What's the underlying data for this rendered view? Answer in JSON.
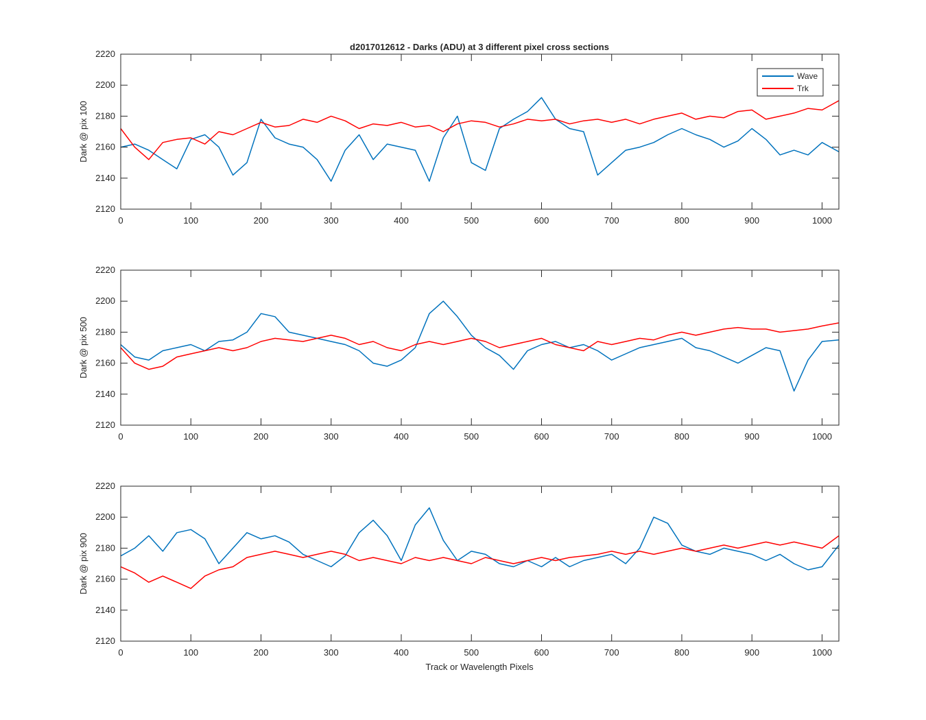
{
  "figure": {
    "title": "d2017012612 - Darks (ADU) at 3 different pixel cross sections",
    "xlabel": "Track or Wavelength Pixels"
  },
  "legend": {
    "placement": "top-right",
    "entries": [
      {
        "name": "Wave",
        "color": "#0072bd"
      },
      {
        "name": "Trk",
        "color": "#ff0000"
      }
    ]
  },
  "chart_data": [
    {
      "type": "line",
      "ylabel": "Dark @ pix 100",
      "xlim": [
        0,
        1024
      ],
      "ylim": [
        2120,
        2220
      ],
      "xticks": [
        0,
        100,
        200,
        300,
        400,
        500,
        600,
        700,
        800,
        900,
        1000
      ],
      "yticks": [
        2120,
        2140,
        2160,
        2180,
        2200,
        2220
      ],
      "grid": false,
      "series": [
        {
          "name": "Wave",
          "color": "#0072bd",
          "x": [
            0,
            20,
            40,
            60,
            80,
            100,
            120,
            140,
            160,
            180,
            200,
            220,
            240,
            260,
            280,
            300,
            320,
            340,
            360,
            380,
            400,
            420,
            440,
            460,
            480,
            500,
            520,
            540,
            560,
            580,
            600,
            620,
            640,
            660,
            680,
            700,
            720,
            740,
            760,
            780,
            800,
            820,
            840,
            860,
            880,
            900,
            920,
            940,
            960,
            980,
            1000,
            1024
          ],
          "y": [
            2160,
            2162,
            2158,
            2152,
            2146,
            2165,
            2168,
            2160,
            2142,
            2150,
            2178,
            2166,
            2162,
            2160,
            2152,
            2138,
            2158,
            2168,
            2152,
            2162,
            2160,
            2158,
            2138,
            2166,
            2180,
            2150,
            2145,
            2172,
            2178,
            2183,
            2192,
            2178,
            2172,
            2170,
            2142,
            2150,
            2158,
            2160,
            2163,
            2168,
            2172,
            2168,
            2165,
            2160,
            2164,
            2172,
            2165,
            2155,
            2158,
            2155,
            2163,
            2157
          ]
        },
        {
          "name": "Trk",
          "color": "#ff0000",
          "x": [
            0,
            20,
            40,
            60,
            80,
            100,
            120,
            140,
            160,
            180,
            200,
            220,
            240,
            260,
            280,
            300,
            320,
            340,
            360,
            380,
            400,
            420,
            440,
            460,
            480,
            500,
            520,
            540,
            560,
            580,
            600,
            620,
            640,
            660,
            680,
            700,
            720,
            740,
            760,
            780,
            800,
            820,
            840,
            860,
            880,
            900,
            920,
            940,
            960,
            980,
            1000,
            1024
          ],
          "y": [
            2172,
            2160,
            2152,
            2163,
            2165,
            2166,
            2162,
            2170,
            2168,
            2172,
            2176,
            2173,
            2174,
            2178,
            2176,
            2180,
            2177,
            2172,
            2175,
            2174,
            2176,
            2173,
            2174,
            2170,
            2175,
            2177,
            2176,
            2173,
            2175,
            2178,
            2177,
            2178,
            2175,
            2177,
            2178,
            2176,
            2178,
            2175,
            2178,
            2180,
            2182,
            2178,
            2180,
            2179,
            2183,
            2184,
            2178,
            2180,
            2182,
            2185,
            2184,
            2190
          ]
        }
      ]
    },
    {
      "type": "line",
      "ylabel": "Dark @ pix 500",
      "xlim": [
        0,
        1024
      ],
      "ylim": [
        2120,
        2220
      ],
      "xticks": [
        0,
        100,
        200,
        300,
        400,
        500,
        600,
        700,
        800,
        900,
        1000
      ],
      "yticks": [
        2120,
        2140,
        2160,
        2180,
        2200,
        2220
      ],
      "grid": false,
      "series": [
        {
          "name": "Wave",
          "color": "#0072bd",
          "x": [
            0,
            20,
            40,
            60,
            80,
            100,
            120,
            140,
            160,
            180,
            200,
            220,
            240,
            260,
            280,
            300,
            320,
            340,
            360,
            380,
            400,
            420,
            440,
            460,
            480,
            500,
            520,
            540,
            560,
            580,
            600,
            620,
            640,
            660,
            680,
            700,
            720,
            740,
            760,
            780,
            800,
            820,
            840,
            860,
            880,
            900,
            920,
            940,
            960,
            980,
            1000,
            1024
          ],
          "y": [
            2172,
            2164,
            2162,
            2168,
            2170,
            2172,
            2168,
            2174,
            2175,
            2180,
            2192,
            2190,
            2180,
            2178,
            2176,
            2174,
            2172,
            2168,
            2160,
            2158,
            2162,
            2170,
            2192,
            2200,
            2190,
            2178,
            2170,
            2165,
            2156,
            2168,
            2172,
            2174,
            2170,
            2172,
            2168,
            2162,
            2166,
            2170,
            2172,
            2174,
            2176,
            2170,
            2168,
            2164,
            2160,
            2165,
            2170,
            2168,
            2142,
            2162,
            2174,
            2175
          ]
        },
        {
          "name": "Trk",
          "color": "#ff0000",
          "x": [
            0,
            20,
            40,
            60,
            80,
            100,
            120,
            140,
            160,
            180,
            200,
            220,
            240,
            260,
            280,
            300,
            320,
            340,
            360,
            380,
            400,
            420,
            440,
            460,
            480,
            500,
            520,
            540,
            560,
            580,
            600,
            620,
            640,
            660,
            680,
            700,
            720,
            740,
            760,
            780,
            800,
            820,
            840,
            860,
            880,
            900,
            920,
            940,
            960,
            980,
            1000,
            1024
          ],
          "y": [
            2170,
            2160,
            2156,
            2158,
            2164,
            2166,
            2168,
            2170,
            2168,
            2170,
            2174,
            2176,
            2175,
            2174,
            2176,
            2178,
            2176,
            2172,
            2174,
            2170,
            2168,
            2172,
            2174,
            2172,
            2174,
            2176,
            2174,
            2170,
            2172,
            2174,
            2176,
            2172,
            2170,
            2168,
            2174,
            2172,
            2174,
            2176,
            2175,
            2178,
            2180,
            2178,
            2180,
            2182,
            2183,
            2182,
            2182,
            2180,
            2181,
            2182,
            2184,
            2186
          ]
        }
      ]
    },
    {
      "type": "line",
      "ylabel": "Dark @ pix 900",
      "xlim": [
        0,
        1024
      ],
      "ylim": [
        2120,
        2220
      ],
      "xticks": [
        0,
        100,
        200,
        300,
        400,
        500,
        600,
        700,
        800,
        900,
        1000
      ],
      "yticks": [
        2120,
        2140,
        2160,
        2180,
        2200,
        2220
      ],
      "grid": false,
      "series": [
        {
          "name": "Wave",
          "color": "#0072bd",
          "x": [
            0,
            20,
            40,
            60,
            80,
            100,
            120,
            140,
            160,
            180,
            200,
            220,
            240,
            260,
            280,
            300,
            320,
            340,
            360,
            380,
            400,
            420,
            440,
            460,
            480,
            500,
            520,
            540,
            560,
            580,
            600,
            620,
            640,
            660,
            680,
            700,
            720,
            740,
            760,
            780,
            800,
            820,
            840,
            860,
            880,
            900,
            920,
            940,
            960,
            980,
            1000,
            1024
          ],
          "y": [
            2175,
            2180,
            2188,
            2178,
            2190,
            2192,
            2186,
            2170,
            2180,
            2190,
            2186,
            2188,
            2184,
            2176,
            2172,
            2168,
            2175,
            2190,
            2198,
            2188,
            2172,
            2195,
            2206,
            2185,
            2172,
            2178,
            2176,
            2170,
            2168,
            2172,
            2168,
            2174,
            2168,
            2172,
            2174,
            2176,
            2170,
            2180,
            2200,
            2196,
            2182,
            2178,
            2176,
            2180,
            2178,
            2176,
            2172,
            2176,
            2170,
            2166,
            2168,
            2182
          ]
        },
        {
          "name": "Trk",
          "color": "#ff0000",
          "x": [
            0,
            20,
            40,
            60,
            80,
            100,
            120,
            140,
            160,
            180,
            200,
            220,
            240,
            260,
            280,
            300,
            320,
            340,
            360,
            380,
            400,
            420,
            440,
            460,
            480,
            500,
            520,
            540,
            560,
            580,
            600,
            620,
            640,
            660,
            680,
            700,
            720,
            740,
            760,
            780,
            800,
            820,
            840,
            860,
            880,
            900,
            920,
            940,
            960,
            980,
            1000,
            1024
          ],
          "y": [
            2168,
            2164,
            2158,
            2162,
            2158,
            2154,
            2162,
            2166,
            2168,
            2174,
            2176,
            2178,
            2176,
            2174,
            2176,
            2178,
            2176,
            2172,
            2174,
            2172,
            2170,
            2174,
            2172,
            2174,
            2172,
            2170,
            2174,
            2172,
            2170,
            2172,
            2174,
            2172,
            2174,
            2175,
            2176,
            2178,
            2176,
            2178,
            2176,
            2178,
            2180,
            2178,
            2180,
            2182,
            2180,
            2182,
            2184,
            2182,
            2184,
            2182,
            2180,
            2188
          ]
        }
      ]
    }
  ]
}
